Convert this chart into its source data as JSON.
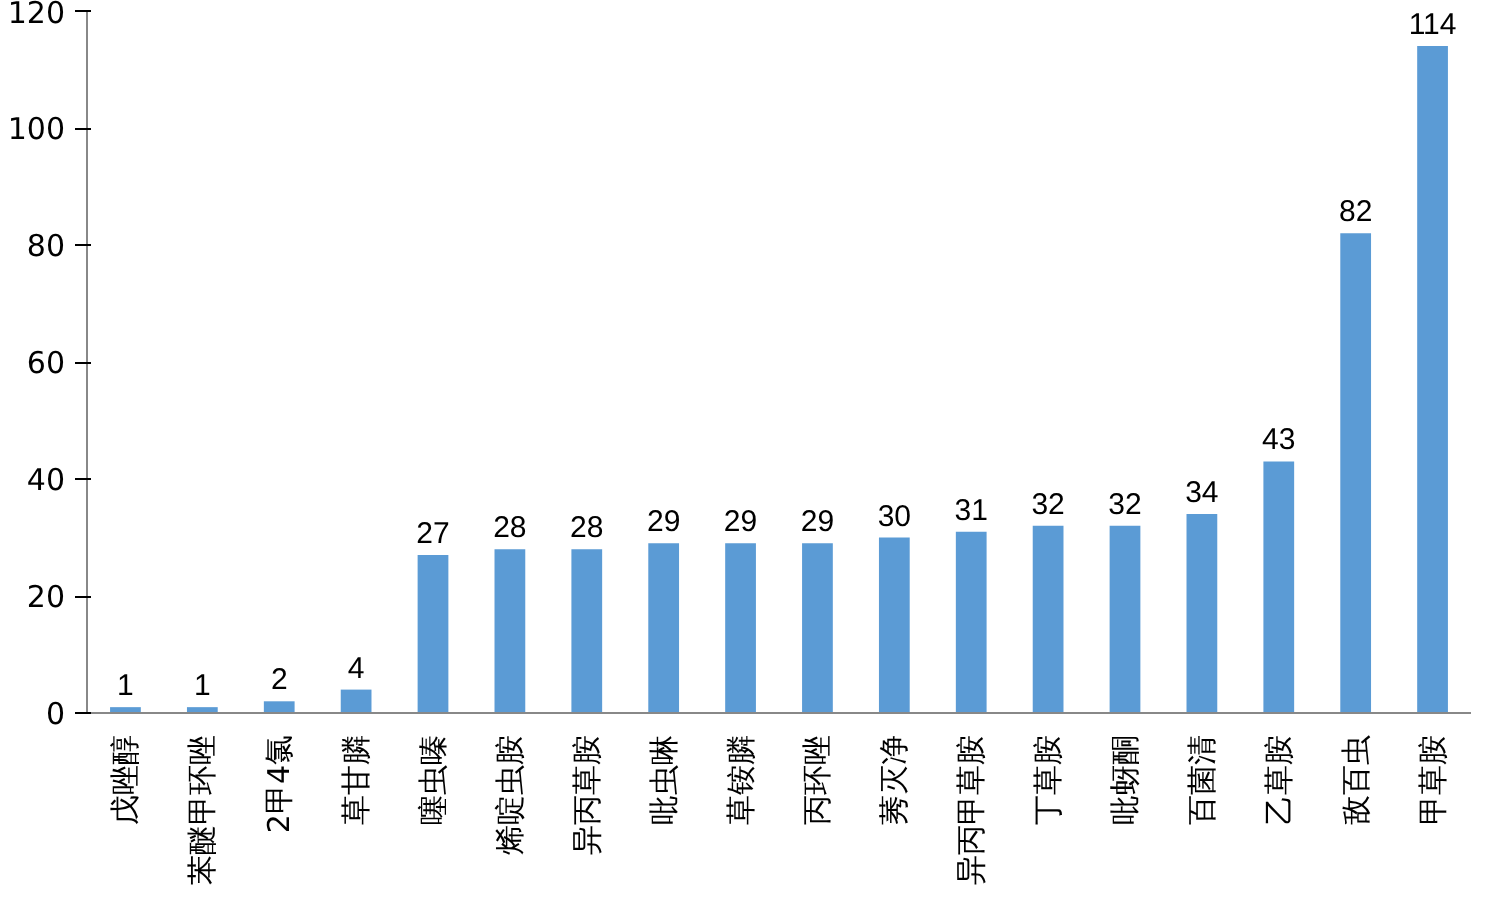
{
  "chart_data": {
    "type": "bar",
    "categories": [
      "戊唑醇",
      "苯醚甲环唑",
      "2甲4氯",
      "草甘膦",
      "噻虫嗪",
      "烯啶虫胺",
      "异丙草胺",
      "吡虫啉",
      "草铵膦",
      "丙环唑",
      "莠灭净",
      "异丙甲草胺",
      "丁草胺",
      "吡蚜酮",
      "百菌清",
      "乙草胺",
      "敌百虫",
      "甲草胺"
    ],
    "values": [
      1,
      1,
      2,
      4,
      27,
      28,
      28,
      29,
      29,
      29,
      30,
      31,
      32,
      32,
      34,
      43,
      82,
      114
    ],
    "color": "#5b9bd5",
    "ylim": [
      0,
      120
    ],
    "yticks": [
      0,
      20,
      40,
      60,
      80,
      100,
      120
    ],
    "grid": false,
    "data_labels": true
  }
}
